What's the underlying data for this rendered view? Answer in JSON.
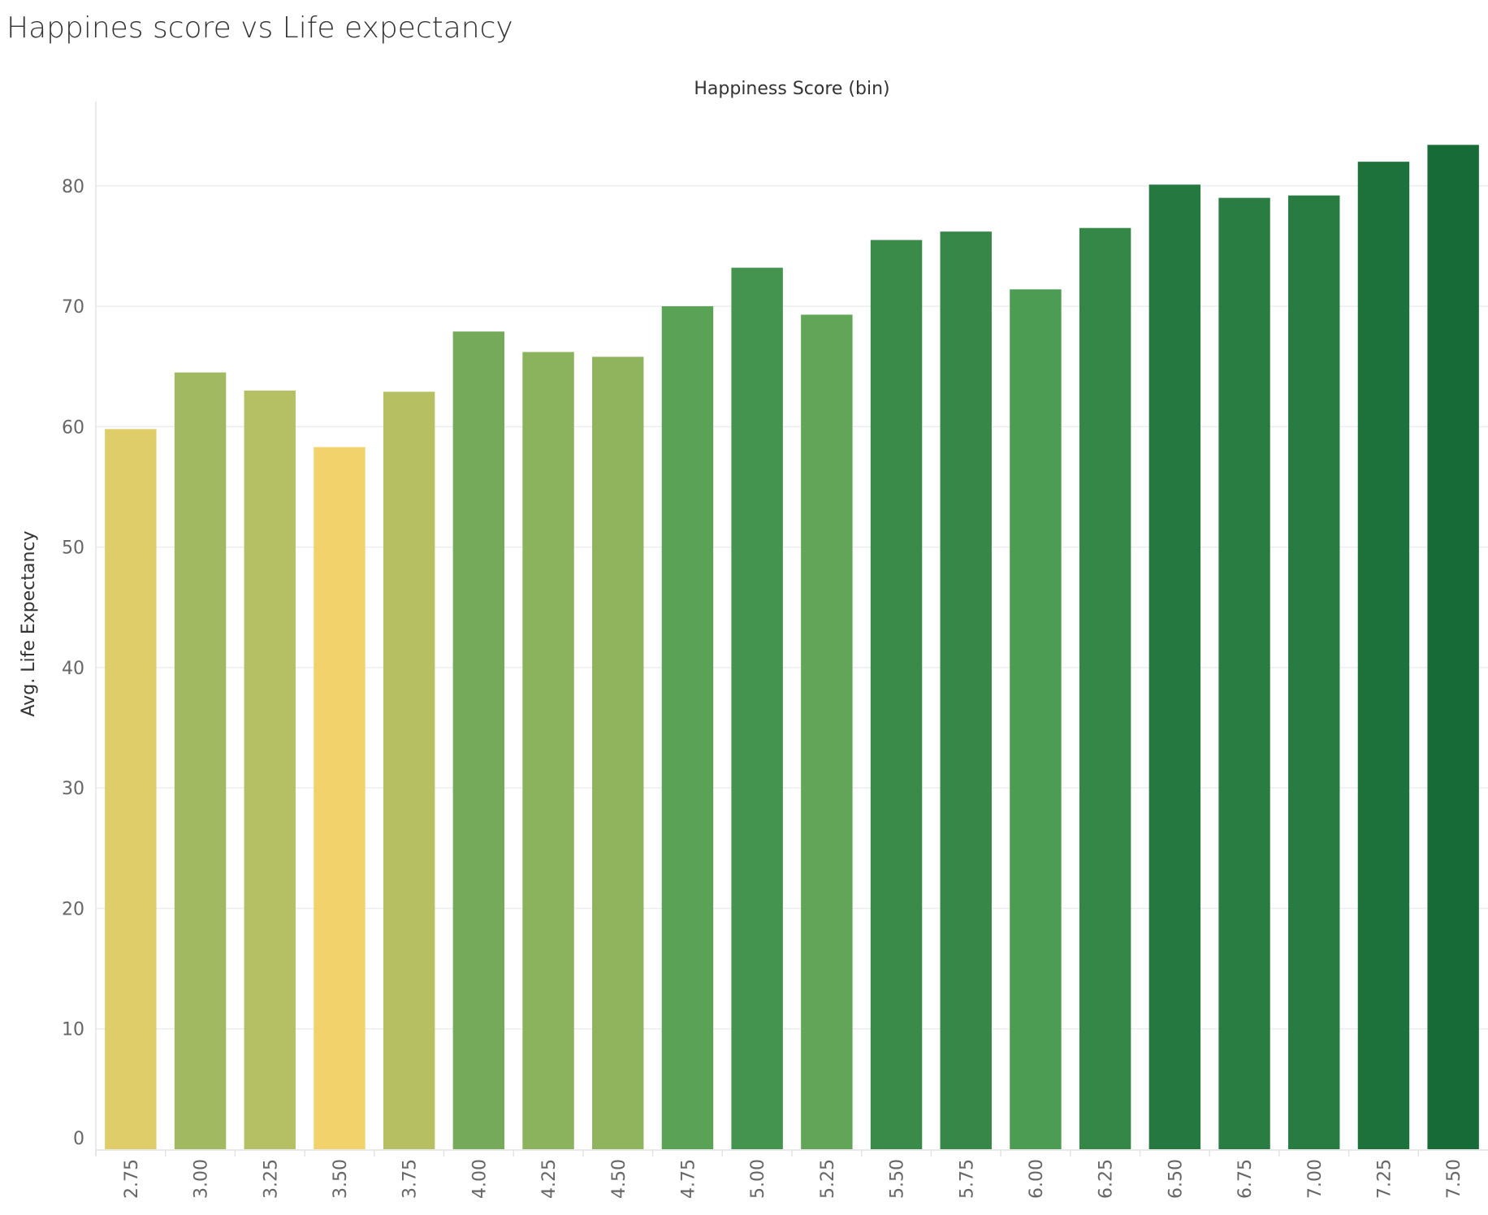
{
  "title": "Happines score vs Life expectancy",
  "chart_data": {
    "type": "bar",
    "title": "Happines score vs Life expectancy",
    "xlabel": "Happiness Score (bin)",
    "ylabel": "Avg. Life Expectancy",
    "categories": [
      "2.75",
      "3.00",
      "3.25",
      "3.50",
      "3.75",
      "4.00",
      "4.25",
      "4.50",
      "4.75",
      "5.00",
      "5.25",
      "5.50",
      "5.75",
      "6.00",
      "6.25",
      "6.50",
      "6.75",
      "7.00",
      "7.25",
      "7.50"
    ],
    "values": [
      59.8,
      64.5,
      63.0,
      58.3,
      62.9,
      67.9,
      66.2,
      65.8,
      70.0,
      73.2,
      69.3,
      75.5,
      76.2,
      71.4,
      76.5,
      80.1,
      79.0,
      79.2,
      82.0,
      83.4
    ],
    "ylim": [
      0,
      87
    ],
    "yticks": [
      "0",
      "10",
      "20",
      "30",
      "40",
      "50",
      "60",
      "70",
      "80"
    ],
    "grid": true,
    "legend": "none",
    "colors": {
      "gradient_start": "#F2D36B",
      "gradient_mid": "#4E9E55",
      "gradient_end": "#176B37",
      "grid": "#EDEDED",
      "axis": "#E3E3E3"
    }
  }
}
